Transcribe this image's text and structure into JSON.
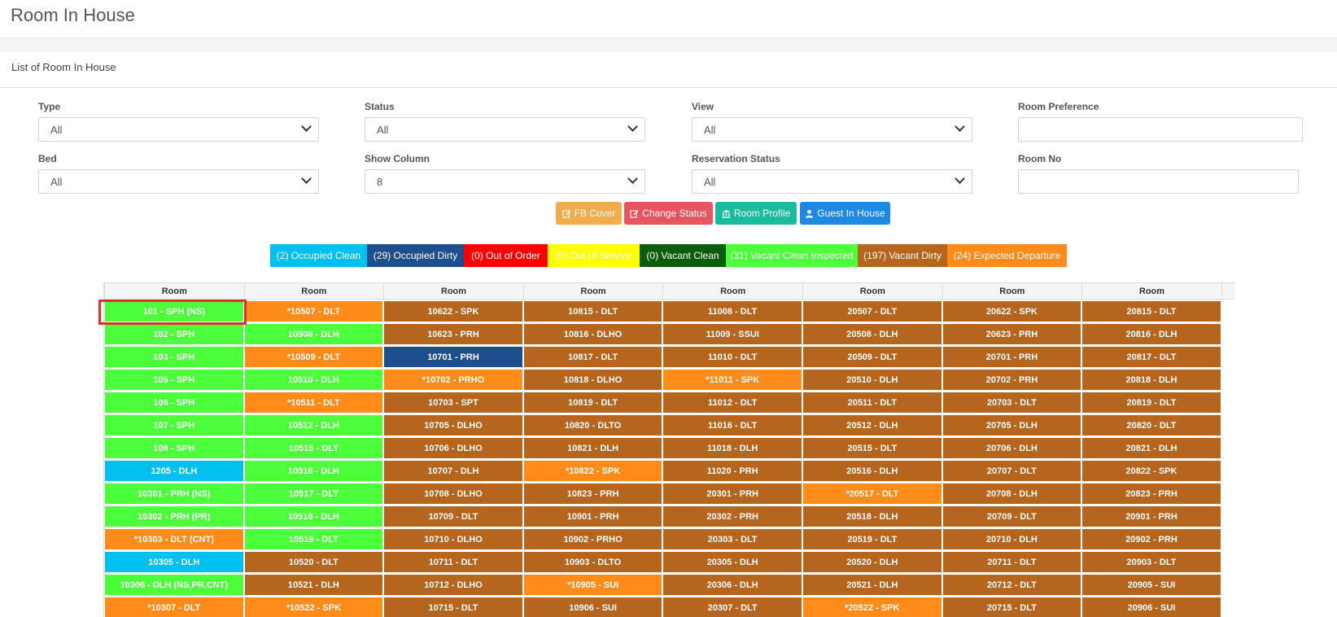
{
  "page": {
    "title": "Room In House",
    "card_title": "List of Room In House"
  },
  "filters": {
    "type": {
      "label": "Type",
      "value": "All"
    },
    "status": {
      "label": "Status",
      "value": "All"
    },
    "view": {
      "label": "View",
      "value": "All"
    },
    "room_preference": {
      "label": "Room Preference",
      "value": ""
    },
    "bed": {
      "label": "Bed",
      "value": "All"
    },
    "show_column": {
      "label": "Show Column",
      "value": "8"
    },
    "reservation_status": {
      "label": "Reservation Status",
      "value": "All"
    },
    "room_no": {
      "label": "Room No",
      "value": ""
    }
  },
  "actions": [
    {
      "label": "FB Cover",
      "icon": "edit-icon",
      "color": "#f0ad4e"
    },
    {
      "label": "Change Status",
      "icon": "edit-icon",
      "color": "#e8545f"
    },
    {
      "label": "Room Profile",
      "icon": "bank-icon",
      "color": "#1abc9c"
    },
    {
      "label": "Guest In House",
      "icon": "user-icon",
      "color": "#1e88e5"
    }
  ],
  "status_colors": {
    "OC": "#00c0ef",
    "OD": "#1f4e8c",
    "OOO": "#ff0000",
    "OOS": "#ffff00",
    "VC": "#0b5d0b",
    "VCI": "#4cff3a",
    "VD": "#b5651d",
    "ED": "#ff8c1a"
  },
  "legend": [
    {
      "label": "(2) Occupied Clean",
      "status": "OC"
    },
    {
      "label": "(29) Occupied Dirty",
      "status": "OD"
    },
    {
      "label": "(0) Out of Order",
      "status": "OOO"
    },
    {
      "label": "(0) Out of Service",
      "status": "OOS"
    },
    {
      "label": "(0) Vacant Clean",
      "status": "VC"
    },
    {
      "label": "(31) Vacant Clean Inspected",
      "status": "VCI"
    },
    {
      "label": "(197) Vacant Dirty",
      "status": "VD"
    },
    {
      "label": "(24) Expected Departure",
      "status": "ED"
    }
  ],
  "grid": {
    "headers": [
      "Room",
      "Room",
      "Room",
      "Room",
      "Room",
      "Room",
      "Room",
      "Room"
    ],
    "columns": [
      [
        {
          "label": "101 - SPH (NS)",
          "status": "VCI"
        },
        {
          "label": "102 - SPH",
          "status": "VCI"
        },
        {
          "label": "103 - SPH",
          "status": "VCI"
        },
        {
          "label": "105 - SPH",
          "status": "VCI"
        },
        {
          "label": "106 - SPH",
          "status": "VCI"
        },
        {
          "label": "107 - SPH",
          "status": "VCI"
        },
        {
          "label": "108 - SPH",
          "status": "VCI"
        },
        {
          "label": "1205 - DLH",
          "status": "OC"
        },
        {
          "label": "10301 - PRH (NS)",
          "status": "VCI"
        },
        {
          "label": "10302 - PRH (PR)",
          "status": "VCI"
        },
        {
          "label": "*10303 - DLT (CNT)",
          "status": "ED"
        },
        {
          "label": "10305 - DLH",
          "status": "OC"
        },
        {
          "label": "10306 - DLH (NS,PR,CNT)",
          "status": "VCI"
        },
        {
          "label": "*10307 - DLT",
          "status": "ED"
        }
      ],
      [
        {
          "label": "*10507 - DLT",
          "status": "ED"
        },
        {
          "label": "10508 - DLH",
          "status": "VCI"
        },
        {
          "label": "*10509 - DLT",
          "status": "ED"
        },
        {
          "label": "10510 - DLH",
          "status": "VCI"
        },
        {
          "label": "*10511 - DLT",
          "status": "ED"
        },
        {
          "label": "10512 - DLH",
          "status": "VCI"
        },
        {
          "label": "10515 - DLT",
          "status": "VCI"
        },
        {
          "label": "10516 - DLH",
          "status": "VCI"
        },
        {
          "label": "10517 - DLT",
          "status": "VCI"
        },
        {
          "label": "10518 - DLH",
          "status": "VCI"
        },
        {
          "label": "10519 - DLT",
          "status": "VCI"
        },
        {
          "label": "10520 - DLT",
          "status": "VD"
        },
        {
          "label": "10521 - DLH",
          "status": "VD"
        },
        {
          "label": "*10522 - SPK",
          "status": "ED"
        }
      ],
      [
        {
          "label": "10622 - SPK",
          "status": "VD"
        },
        {
          "label": "10623 - PRH",
          "status": "VD"
        },
        {
          "label": "10701 - PRH",
          "status": "OD"
        },
        {
          "label": "*10702 - PRHO",
          "status": "ED"
        },
        {
          "label": "10703 - SPT",
          "status": "VD"
        },
        {
          "label": "10705 - DLHO",
          "status": "VD"
        },
        {
          "label": "10706 - DLHO",
          "status": "VD"
        },
        {
          "label": "10707 - DLH",
          "status": "VD"
        },
        {
          "label": "10708 - DLHO",
          "status": "VD"
        },
        {
          "label": "10709 - DLT",
          "status": "VD"
        },
        {
          "label": "10710 - DLHO",
          "status": "VD"
        },
        {
          "label": "10711 - DLT",
          "status": "VD"
        },
        {
          "label": "10712 - DLHO",
          "status": "VD"
        },
        {
          "label": "10715 - DLT",
          "status": "VD"
        }
      ],
      [
        {
          "label": "10815 - DLT",
          "status": "VD"
        },
        {
          "label": "10816 - DLHO",
          "status": "VD"
        },
        {
          "label": "10817 - DLT",
          "status": "VD"
        },
        {
          "label": "10818 - DLHO",
          "status": "VD"
        },
        {
          "label": "10819 - DLT",
          "status": "VD"
        },
        {
          "label": "10820 - DLTO",
          "status": "VD"
        },
        {
          "label": "10821 - DLH",
          "status": "VD"
        },
        {
          "label": "*10822 - SPK",
          "status": "ED"
        },
        {
          "label": "10823 - PRH",
          "status": "VD"
        },
        {
          "label": "10901 - PRH",
          "status": "VD"
        },
        {
          "label": "10902 - PRHO",
          "status": "VD"
        },
        {
          "label": "10903 - DLTO",
          "status": "VD"
        },
        {
          "label": "*10905 - SUI",
          "status": "ED"
        },
        {
          "label": "10906 - SUI",
          "status": "VD"
        }
      ],
      [
        {
          "label": "11008 - DLT",
          "status": "VD"
        },
        {
          "label": "11009 - SSUI",
          "status": "VD"
        },
        {
          "label": "11010 - DLT",
          "status": "VD"
        },
        {
          "label": "*11011 - SPK",
          "status": "ED"
        },
        {
          "label": "11012 - DLT",
          "status": "VD"
        },
        {
          "label": "11016 - DLT",
          "status": "VD"
        },
        {
          "label": "11018 - DLH",
          "status": "VD"
        },
        {
          "label": "11020 - PRH",
          "status": "VD"
        },
        {
          "label": "20301 - PRH",
          "status": "VD"
        },
        {
          "label": "20302 - PRH",
          "status": "VD"
        },
        {
          "label": "20303 - DLT",
          "status": "VD"
        },
        {
          "label": "20305 - DLH",
          "status": "VD"
        },
        {
          "label": "20306 - DLH",
          "status": "VD"
        },
        {
          "label": "20307 - DLT",
          "status": "VD"
        }
      ],
      [
        {
          "label": "20507 - DLT",
          "status": "VD"
        },
        {
          "label": "20508 - DLH",
          "status": "VD"
        },
        {
          "label": "20509 - DLT",
          "status": "VD"
        },
        {
          "label": "20510 - DLH",
          "status": "VD"
        },
        {
          "label": "20511 - DLT",
          "status": "VD"
        },
        {
          "label": "20512 - DLH",
          "status": "VD"
        },
        {
          "label": "20515 - DLT",
          "status": "VD"
        },
        {
          "label": "20516 - DLH",
          "status": "VD"
        },
        {
          "label": "*20517 - DLT",
          "status": "ED"
        },
        {
          "label": "20518 - DLH",
          "status": "VD"
        },
        {
          "label": "20519 - DLT",
          "status": "VD"
        },
        {
          "label": "20520 - DLH",
          "status": "VD"
        },
        {
          "label": "20521 - DLH",
          "status": "VD"
        },
        {
          "label": "*20522 - SPK",
          "status": "ED"
        }
      ],
      [
        {
          "label": "20622 - SPK",
          "status": "VD"
        },
        {
          "label": "20623 - PRH",
          "status": "VD"
        },
        {
          "label": "20701 - PRH",
          "status": "VD"
        },
        {
          "label": "20702 - PRH",
          "status": "VD"
        },
        {
          "label": "20703 - DLT",
          "status": "VD"
        },
        {
          "label": "20705 - DLH",
          "status": "VD"
        },
        {
          "label": "20706 - DLH",
          "status": "VD"
        },
        {
          "label": "20707 - DLT",
          "status": "VD"
        },
        {
          "label": "20708 - DLH",
          "status": "VD"
        },
        {
          "label": "20709 - DLT",
          "status": "VD"
        },
        {
          "label": "20710 - DLH",
          "status": "VD"
        },
        {
          "label": "20711 - DLT",
          "status": "VD"
        },
        {
          "label": "20712 - DLT",
          "status": "VD"
        },
        {
          "label": "20715 - DLT",
          "status": "VD"
        }
      ],
      [
        {
          "label": "20815 - DLT",
          "status": "VD"
        },
        {
          "label": "20816 - DLH",
          "status": "VD"
        },
        {
          "label": "20817 - DLT",
          "status": "VD"
        },
        {
          "label": "20818 - DLH",
          "status": "VD"
        },
        {
          "label": "20819 - DLT",
          "status": "VD"
        },
        {
          "label": "20820 - DLT",
          "status": "VD"
        },
        {
          "label": "20821 - DLH",
          "status": "VD"
        },
        {
          "label": "20822 - SPK",
          "status": "VD"
        },
        {
          "label": "20823 - PRH",
          "status": "VD"
        },
        {
          "label": "20901 - PRH",
          "status": "VD"
        },
        {
          "label": "20902 - PRH",
          "status": "VD"
        },
        {
          "label": "20903 - DLT",
          "status": "VD"
        },
        {
          "label": "20905 - SUI",
          "status": "VD"
        },
        {
          "label": "20906 - SUI",
          "status": "VD"
        }
      ]
    ]
  }
}
